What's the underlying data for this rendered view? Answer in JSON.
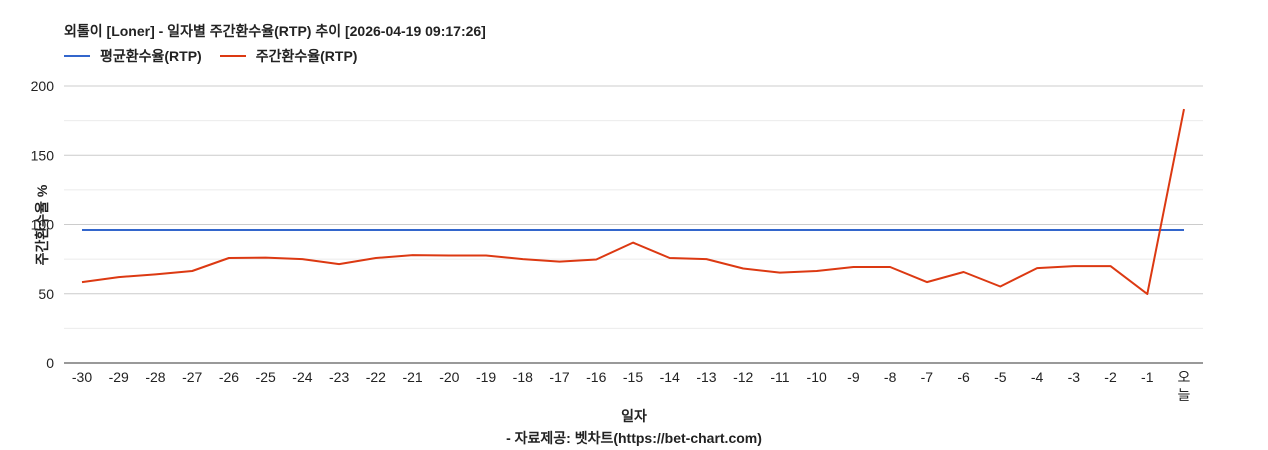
{
  "header": {
    "title": "외톨이 [Loner] - 일자별 주간환수율(RTP) 추이 [2026-04-19 09:17:26]"
  },
  "legend": [
    {
      "label": "평균환수율(RTP)",
      "color": "#3366cc"
    },
    {
      "label": "주간환수율(RTP)",
      "color": "#dc3912"
    }
  ],
  "footer": {
    "xlabel": "일자",
    "source": "- 자료제공: 벳차트(https://bet-chart.com)"
  },
  "chart_data": {
    "type": "line",
    "title": "외톨이 [Loner] - 일자별 주간환수율(RTP) 추이 [2026-04-19 09:17:26]",
    "xlabel": "일자",
    "ylabel": "주간환수율 %",
    "ylim": [
      0,
      200
    ],
    "yticks": [
      0,
      50,
      100,
      150,
      200
    ],
    "grid": true,
    "legend_position": "top",
    "categories": [
      "-30",
      "-29",
      "-28",
      "-27",
      "-26",
      "-25",
      "-24",
      "-23",
      "-22",
      "-21",
      "-20",
      "-19",
      "-18",
      "-17",
      "-16",
      "-15",
      "-14",
      "-13",
      "-12",
      "-11",
      "-10",
      "-9",
      "-8",
      "-7",
      "-6",
      "-5",
      "-4",
      "-3",
      "-2",
      "-1",
      "오늘"
    ],
    "series": [
      {
        "name": "평균환수율(RTP)",
        "color": "#3366cc",
        "values": [
          96,
          96,
          96,
          96,
          96,
          96,
          96,
          96,
          96,
          96,
          96,
          96,
          96,
          96,
          96,
          96,
          96,
          96,
          96,
          96,
          96,
          96,
          96,
          96,
          96,
          96,
          96,
          96,
          96,
          96,
          96
        ]
      },
      {
        "name": "주간환수율(RTP)",
        "color": "#dc3912",
        "values": [
          58.4,
          62.0,
          64.0,
          66.4,
          75.8,
          76.1,
          75.0,
          71.4,
          75.8,
          77.9,
          77.6,
          77.6,
          75.0,
          73.2,
          74.7,
          86.9,
          75.8,
          75.0,
          68.2,
          65.3,
          66.4,
          69.3,
          69.3,
          58.4,
          65.7,
          55.2,
          68.5,
          70.0,
          70.0,
          49.8,
          183.3
        ]
      }
    ]
  }
}
